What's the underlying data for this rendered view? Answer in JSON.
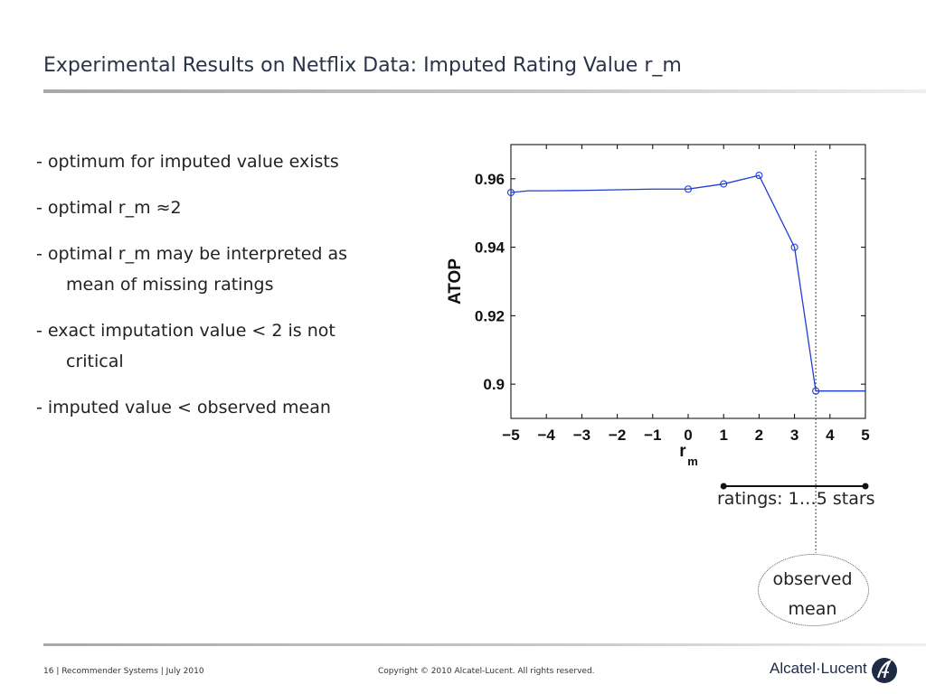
{
  "slide": {
    "title": "Experimental Results on Netflix Data: Imputed Rating Value r_m"
  },
  "bullets": [
    {
      "first": "- optimum for imputed value exists",
      "cont": ""
    },
    {
      "first": "- optimal r_m ≈2",
      "cont": ""
    },
    {
      "first": "- optimal r_m may be interpreted as",
      "cont": "mean of missing ratings"
    },
    {
      "first": "- exact imputation value < 2 is not",
      "cont": "critical"
    },
    {
      "first": "- imputed value < observed mean",
      "cont": ""
    }
  ],
  "chart_data": {
    "type": "line",
    "ylabel": "ATOP",
    "xlabel_main": "r",
    "xlabel_sub": "m",
    "xlim": [
      -5,
      5
    ],
    "ylim": [
      0.89,
      0.97
    ],
    "xticks": [
      -5,
      -4,
      -3,
      -2,
      -1,
      0,
      1,
      2,
      3,
      4,
      5
    ],
    "xtick_labels": [
      "−5",
      "−4",
      "−3",
      "−2",
      "−1",
      "0",
      "1",
      "2",
      "3",
      "4",
      "5"
    ],
    "yticks": [
      0.9,
      0.92,
      0.94,
      0.96
    ],
    "ytick_labels": [
      "0.9",
      "0.92",
      "0.94",
      "0.96"
    ],
    "grid": false,
    "color": "#1f3fd6",
    "series": [
      {
        "x": [
          -5,
          -4.5,
          -4,
          -3,
          -2,
          -1,
          0,
          1,
          2,
          3,
          3.6,
          4,
          5
        ],
        "y": [
          0.956,
          0.9565,
          0.9565,
          0.9566,
          0.9568,
          0.957,
          0.957,
          0.9585,
          0.961,
          0.94,
          0.898,
          0.898,
          0.898
        ],
        "markers_x": [
          -5,
          0,
          1,
          2,
          3,
          3.6
        ],
        "markers_y": [
          0.956,
          0.957,
          0.9585,
          0.961,
          0.94,
          0.898
        ]
      }
    ],
    "observed_mean_x": 3.6,
    "ratings_range": [
      1,
      5
    ]
  },
  "annotations": {
    "ratings_label": "ratings: 1…5 stars",
    "observed_line1": "observed",
    "observed_line2": "mean"
  },
  "footer": {
    "left": "16 | Recommender Systems | July 2010",
    "center": "Copyright © 2010 Alcatel-Lucent. All rights reserved.",
    "logo_text": "Alcatel·Lucent"
  }
}
